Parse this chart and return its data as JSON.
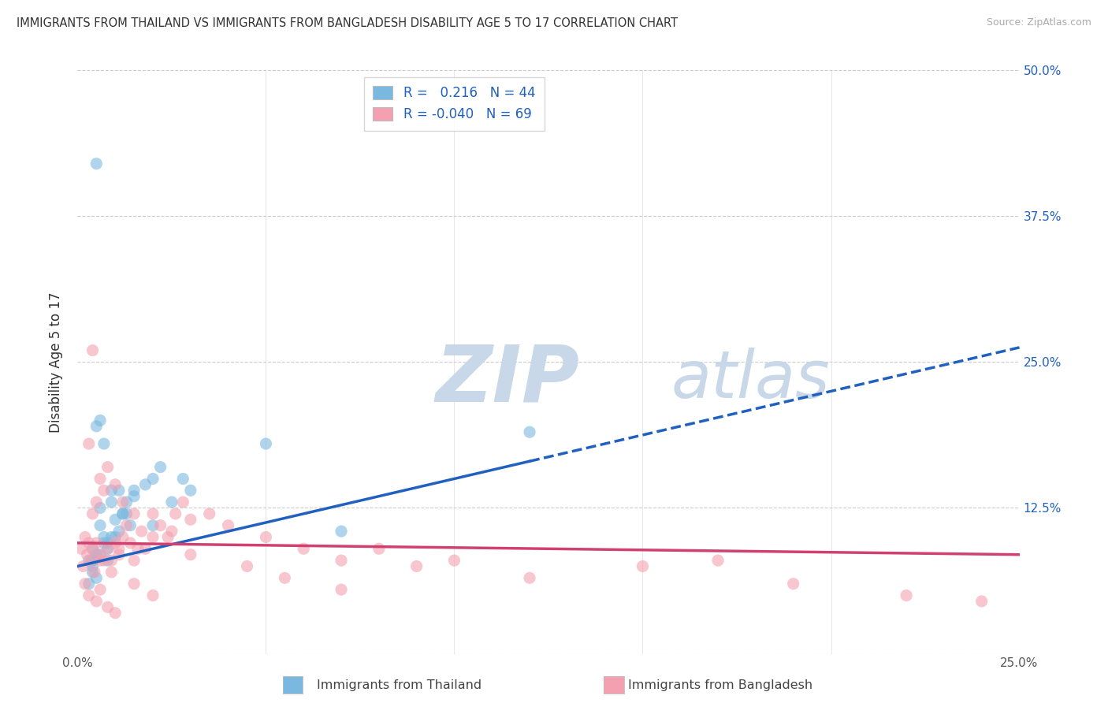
{
  "title": "IMMIGRANTS FROM THAILAND VS IMMIGRANTS FROM BANGLADESH DISABILITY AGE 5 TO 17 CORRELATION CHART",
  "source": "Source: ZipAtlas.com",
  "xlim": [
    0.0,
    25.0
  ],
  "ylim": [
    0.0,
    50.0
  ],
  "ylabel": "Disability Age 5 to 17",
  "legend_label1": "Immigrants from Thailand",
  "legend_label2": "Immigrants from Bangladesh",
  "R1": 0.216,
  "N1": 44,
  "R2": -0.04,
  "N2": 69,
  "color_thailand": "#7ab8e0",
  "color_bangladesh": "#f4a0b0",
  "color_trendline1": "#2060c0",
  "color_trendline2": "#d04070",
  "watermark_zip": "ZIP",
  "watermark_atlas": "atlas",
  "watermark_color_zip": "#c8d8e8",
  "watermark_color_atlas": "#c8d8e8",
  "background_color": "#ffffff",
  "thailand_x": [
    0.5,
    1.0,
    0.3,
    0.4,
    0.6,
    0.7,
    0.8,
    0.9,
    1.1,
    1.2,
    1.3,
    1.4,
    0.5,
    0.6,
    0.7,
    0.8,
    1.5,
    0.9,
    1.0,
    0.4,
    0.5,
    0.6,
    2.0,
    1.8,
    2.2,
    2.5,
    3.0,
    0.3,
    0.4,
    0.5,
    0.7,
    0.8,
    1.2,
    1.5,
    2.0,
    5.0,
    7.0,
    0.6,
    0.9,
    1.1,
    1.3,
    2.8,
    12.0,
    0.4
  ],
  "thailand_y": [
    42.0,
    10.0,
    8.0,
    9.0,
    8.5,
    9.5,
    8.0,
    10.0,
    10.5,
    12.0,
    13.0,
    11.0,
    19.5,
    20.0,
    18.0,
    9.0,
    13.5,
    14.0,
    11.5,
    7.0,
    6.5,
    12.5,
    15.0,
    14.5,
    16.0,
    13.0,
    14.0,
    6.0,
    7.5,
    8.5,
    10.0,
    9.5,
    12.0,
    14.0,
    11.0,
    18.0,
    10.5,
    11.0,
    13.0,
    14.0,
    12.0,
    15.0,
    19.0,
    8.0
  ],
  "bangladesh_x": [
    0.1,
    0.15,
    0.2,
    0.25,
    0.3,
    0.35,
    0.4,
    0.45,
    0.5,
    0.6,
    0.7,
    0.8,
    0.9,
    1.0,
    1.1,
    1.2,
    1.3,
    1.4,
    1.5,
    1.6,
    1.7,
    1.8,
    2.0,
    2.2,
    2.4,
    2.6,
    2.8,
    3.0,
    3.5,
    4.0,
    5.0,
    6.0,
    7.0,
    8.0,
    9.0,
    10.0,
    12.0,
    0.3,
    0.4,
    0.5,
    0.6,
    0.7,
    0.8,
    1.0,
    1.2,
    1.5,
    2.0,
    2.5,
    3.0,
    4.5,
    5.5,
    7.0,
    0.2,
    0.3,
    0.5,
    0.6,
    0.8,
    1.0,
    1.5,
    15.0,
    17.0,
    19.0,
    22.0,
    24.0,
    0.4,
    0.6,
    0.9,
    1.1,
    2.0
  ],
  "bangladesh_y": [
    9.0,
    7.5,
    10.0,
    8.5,
    9.5,
    8.0,
    9.0,
    7.0,
    9.5,
    8.5,
    8.0,
    9.0,
    8.0,
    9.5,
    8.5,
    10.0,
    11.0,
    9.5,
    8.0,
    9.0,
    10.5,
    9.0,
    12.0,
    11.0,
    10.0,
    12.0,
    13.0,
    11.5,
    12.0,
    11.0,
    10.0,
    9.0,
    8.0,
    9.0,
    7.5,
    8.0,
    6.5,
    18.0,
    12.0,
    13.0,
    15.0,
    14.0,
    16.0,
    14.5,
    13.0,
    12.0,
    10.0,
    10.5,
    8.5,
    7.5,
    6.5,
    5.5,
    6.0,
    5.0,
    4.5,
    5.5,
    4.0,
    3.5,
    6.0,
    7.5,
    8.0,
    6.0,
    5.0,
    4.5,
    26.0,
    8.0,
    7.0,
    9.0,
    5.0
  ],
  "trendline1_x0": 0.0,
  "trendline1_y0": 7.5,
  "trendline1_x1": 12.0,
  "trendline1_y1": 16.5,
  "trendline1_xdash0": 12.0,
  "trendline1_xdash1": 25.0,
  "trendline2_x0": 0.0,
  "trendline2_y0": 9.5,
  "trendline2_x1": 25.0,
  "trendline2_y1": 8.5
}
